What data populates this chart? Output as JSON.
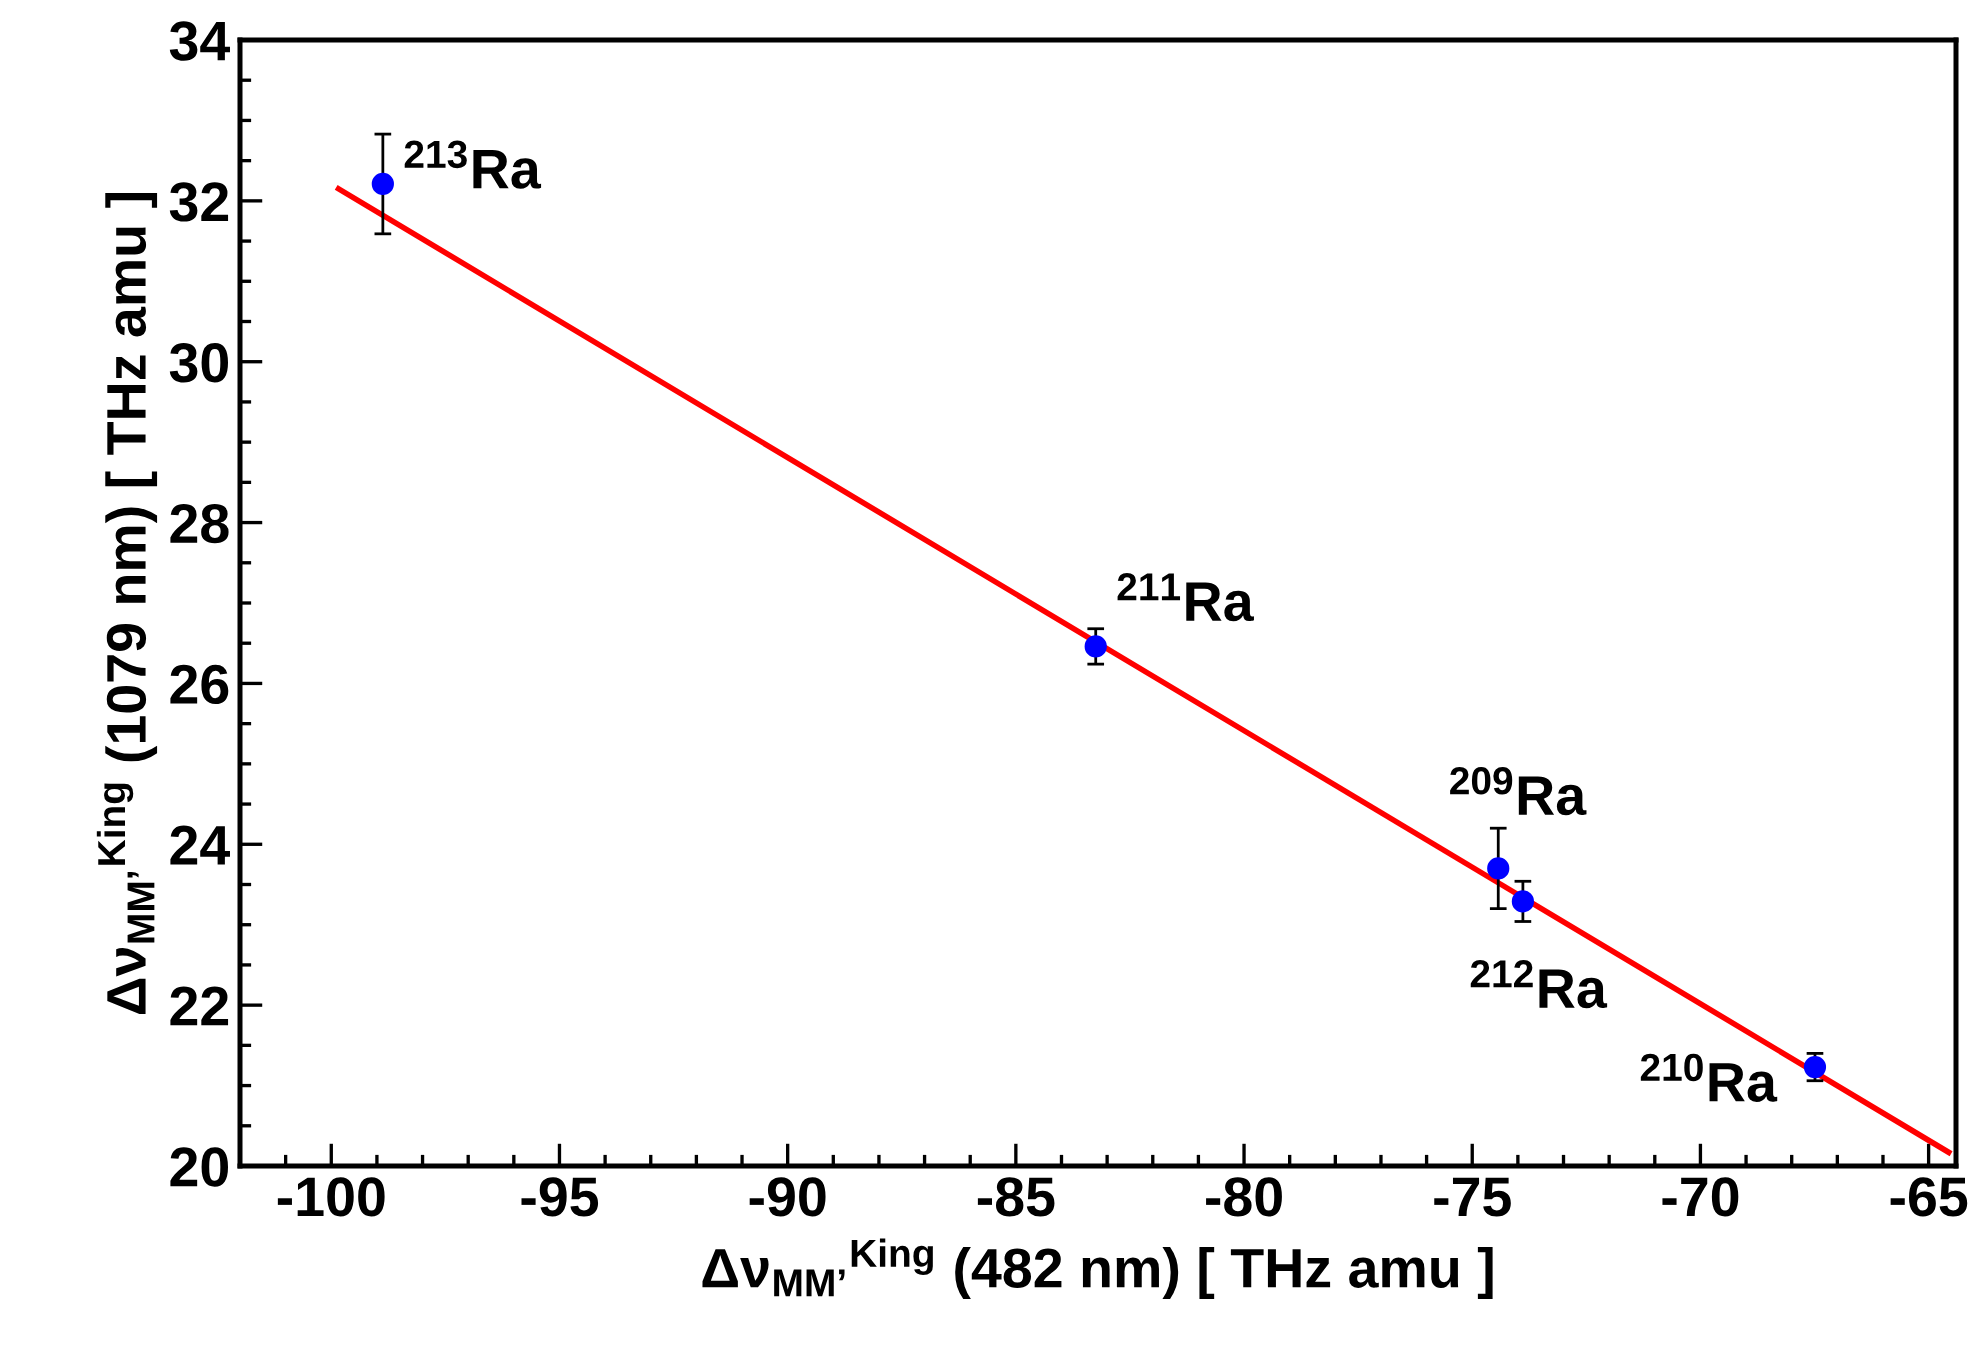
{
  "chart_data": {
    "type": "scatter",
    "xlabel": "Δν$_{MM’}$$^{King}$ (482 nm) [ THz amu ]",
    "ylabel": "Δν$_{MM’}$$^{King}$ (1079 nm) [ THz amu ]",
    "xlim": [
      -102,
      -64.4
    ],
    "ylim": [
      20,
      34
    ],
    "xticks": [
      {
        "value": -102,
        "label": null
      },
      {
        "value": -101,
        "label": null
      },
      -100,
      {
        "value": -99,
        "label": null
      },
      {
        "value": -98,
        "label": null
      },
      {
        "value": -97,
        "label": null
      },
      {
        "value": -96,
        "label": null
      },
      -95,
      {
        "value": -94,
        "label": null
      },
      {
        "value": -93,
        "label": null
      },
      {
        "value": -92,
        "label": null
      },
      {
        "value": -91,
        "label": null
      },
      -90,
      {
        "value": -89,
        "label": null
      },
      {
        "value": -88,
        "label": null
      },
      {
        "value": -87,
        "label": null
      },
      {
        "value": -86,
        "label": null
      },
      -85,
      {
        "value": -84,
        "label": null
      },
      {
        "value": -83,
        "label": null
      },
      {
        "value": -82,
        "label": null
      },
      {
        "value": -81,
        "label": null
      },
      -80,
      {
        "value": -79,
        "label": null
      },
      {
        "value": -78,
        "label": null
      },
      {
        "value": -77,
        "label": null
      },
      {
        "value": -76,
        "label": null
      },
      -75,
      {
        "value": -74,
        "label": null
      },
      {
        "value": -73,
        "label": null
      },
      {
        "value": -72,
        "label": null
      },
      {
        "value": -71,
        "label": null
      },
      -70,
      {
        "value": -69,
        "label": null
      },
      {
        "value": -68,
        "label": null
      },
      {
        "value": -67,
        "label": null
      },
      {
        "value": -66,
        "label": null
      },
      -65
    ],
    "yticks": [
      20,
      {
        "value": 20.5,
        "label": null
      },
      {
        "value": 21,
        "label": null
      },
      {
        "value": 21.5,
        "label": null
      },
      22,
      {
        "value": 22.5,
        "label": null
      },
      {
        "value": 23,
        "label": null
      },
      {
        "value": 23.5,
        "label": null
      },
      24,
      {
        "value": 24.5,
        "label": null
      },
      {
        "value": 25,
        "label": null
      },
      {
        "value": 25.5,
        "label": null
      },
      26,
      {
        "value": 26.5,
        "label": null
      },
      {
        "value": 27,
        "label": null
      },
      {
        "value": 27.5,
        "label": null
      },
      28,
      {
        "value": 28.5,
        "label": null
      },
      {
        "value": 29,
        "label": null
      },
      {
        "value": 29.5,
        "label": null
      },
      30,
      {
        "value": 30.5,
        "label": null
      },
      {
        "value": 31,
        "label": null
      },
      {
        "value": 31.5,
        "label": null
      },
      32,
      {
        "value": 32.5,
        "label": null
      },
      {
        "value": 33,
        "label": null
      },
      {
        "value": 33.5,
        "label": null
      },
      34
    ],
    "grid": false,
    "legend": false,
    "marker": "circle",
    "series": [
      {
        "type": "scatter",
        "color": "#0000ff",
        "x": [
          -98.87,
          -83.25,
          -74.43,
          -73.89,
          -67.49
        ],
        "values": [
          32.21,
          26.46,
          23.7,
          23.29,
          21.23
        ],
        "errors": [
          0.62,
          0.22,
          0.5,
          0.25,
          0.17
        ]
      },
      {
        "type": "line",
        "color": "#ff0000",
        "line_style": "solid",
        "marker": "none",
        "x": [
          -99.84,
          -64.56
        ],
        "values": [
          32.15,
          20.17
        ]
      }
    ],
    "annotations": [
      {
        "text": "$^{213}$Ra",
        "x": -98.87,
        "y": 32.21
      },
      {
        "text": "$^{211}$Ra",
        "x": -83.25,
        "y": 26.46
      },
      {
        "text": "$^{209}$Ra",
        "x": -74.43,
        "y": 23.7
      },
      {
        "text": "$^{212}$Ra",
        "x": -73.89,
        "y": 23.29
      },
      {
        "text": "$^{210}$Ra",
        "x": -67.49,
        "y": 21.23
      }
    ]
  }
}
